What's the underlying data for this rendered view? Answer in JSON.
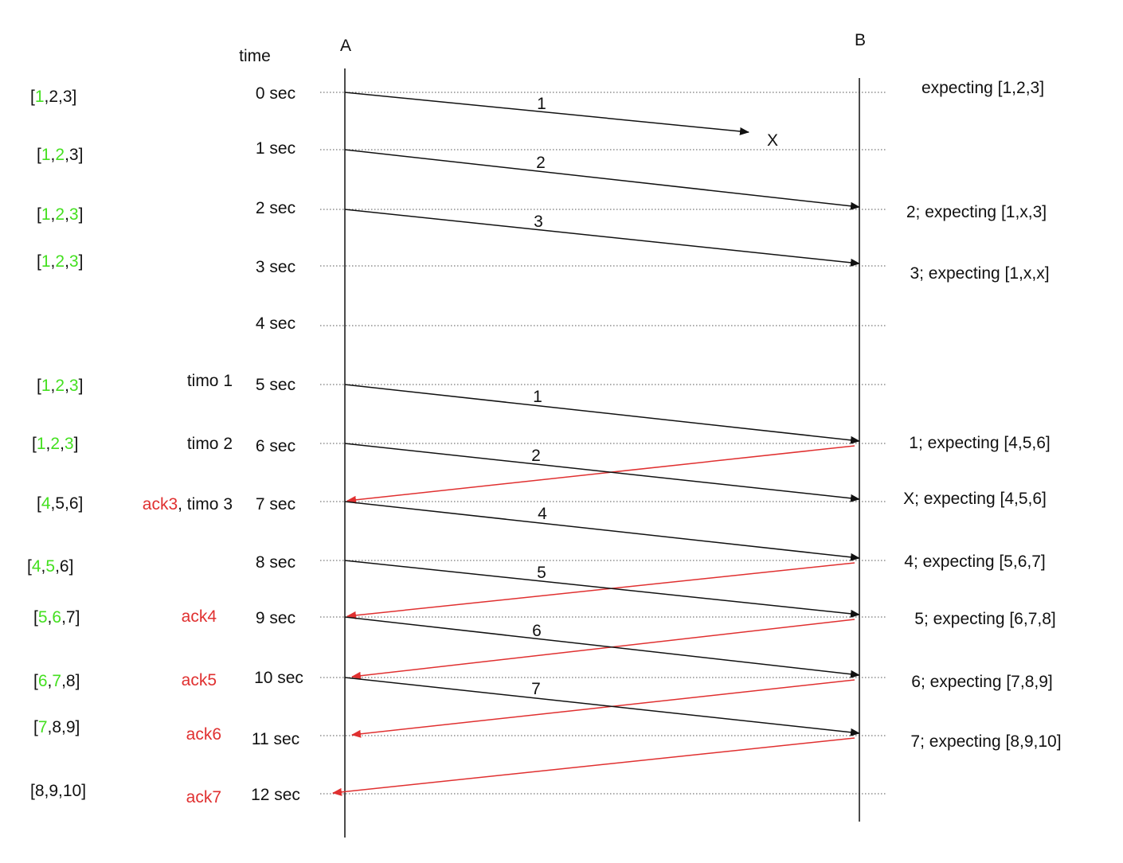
{
  "diagram": {
    "time_header": "time",
    "endpoint_a": "A",
    "endpoint_b": "B",
    "colors": {
      "black": "#111111",
      "red": "#e03030",
      "green": "#44e020",
      "grid": "#555555"
    },
    "time_labels": [
      "0 sec",
      "1 sec",
      "2 sec",
      "3 sec",
      "4 sec",
      "5 sec",
      "6 sec",
      "7 sec",
      "8 sec",
      "9 sec",
      "10 sec",
      "11 sec",
      "12 sec"
    ],
    "windows": [
      [
        {
          "t": "[",
          "c": "black"
        },
        {
          "t": "1",
          "c": "green"
        },
        {
          "t": ",2,3]",
          "c": "black"
        }
      ],
      [
        {
          "t": "[",
          "c": "black"
        },
        {
          "t": "1",
          "c": "green"
        },
        {
          "t": ",",
          "c": "black"
        },
        {
          "t": "2",
          "c": "green"
        },
        {
          "t": ",3]",
          "c": "black"
        }
      ],
      [
        {
          "t": "[",
          "c": "black"
        },
        {
          "t": "1",
          "c": "green"
        },
        {
          "t": ",",
          "c": "black"
        },
        {
          "t": "2",
          "c": "green"
        },
        {
          "t": ",",
          "c": "black"
        },
        {
          "t": "3",
          "c": "green"
        },
        {
          "t": "]",
          "c": "black"
        }
      ],
      [
        {
          "t": "[",
          "c": "black"
        },
        {
          "t": "1",
          "c": "green"
        },
        {
          "t": ",",
          "c": "black"
        },
        {
          "t": "2",
          "c": "green"
        },
        {
          "t": ",",
          "c": "black"
        },
        {
          "t": "3",
          "c": "green"
        },
        {
          "t": "]",
          "c": "black"
        }
      ],
      [
        {
          "t": "[",
          "c": "black"
        },
        {
          "t": "1",
          "c": "green"
        },
        {
          "t": ",",
          "c": "black"
        },
        {
          "t": "2",
          "c": "green"
        },
        {
          "t": ",",
          "c": "black"
        },
        {
          "t": "3",
          "c": "green"
        },
        {
          "t": "]",
          "c": "black"
        }
      ],
      [
        {
          "t": "[",
          "c": "black"
        },
        {
          "t": "1",
          "c": "green"
        },
        {
          "t": ",",
          "c": "black"
        },
        {
          "t": "2",
          "c": "green"
        },
        {
          "t": ",",
          "c": "black"
        },
        {
          "t": "3",
          "c": "green"
        },
        {
          "t": "]",
          "c": "black"
        }
      ],
      [
        {
          "t": "[",
          "c": "black"
        },
        {
          "t": "4",
          "c": "green"
        },
        {
          "t": ",5,6]",
          "c": "black"
        }
      ],
      [
        {
          "t": "[",
          "c": "black"
        },
        {
          "t": "4",
          "c": "green"
        },
        {
          "t": ",",
          "c": "black"
        },
        {
          "t": "5",
          "c": "green"
        },
        {
          "t": ",6]",
          "c": "black"
        }
      ],
      [
        {
          "t": "[",
          "c": "black"
        },
        {
          "t": "5",
          "c": "green"
        },
        {
          "t": ",",
          "c": "black"
        },
        {
          "t": "6",
          "c": "green"
        },
        {
          "t": ",7]",
          "c": "black"
        }
      ],
      [
        {
          "t": "[",
          "c": "black"
        },
        {
          "t": "6",
          "c": "green"
        },
        {
          "t": ",",
          "c": "black"
        },
        {
          "t": "7",
          "c": "green"
        },
        {
          "t": ",8]",
          "c": "black"
        }
      ],
      [
        {
          "t": "[",
          "c": "black"
        },
        {
          "t": "7",
          "c": "green"
        },
        {
          "t": ",8,9]",
          "c": "black"
        }
      ],
      [
        {
          "t": "[8,9,10]",
          "c": "black"
        }
      ]
    ],
    "events": [
      [
        {
          "t": "timo 1",
          "c": "black"
        }
      ],
      [
        {
          "t": "timo 2",
          "c": "black"
        }
      ],
      [
        {
          "t": "ack3",
          "c": "red"
        },
        {
          "t": ", timo 3",
          "c": "black"
        }
      ],
      [
        {
          "t": "ack4",
          "c": "red"
        }
      ],
      [
        {
          "t": "ack5",
          "c": "red"
        }
      ],
      [
        {
          "t": "ack6",
          "c": "red"
        }
      ],
      [
        {
          "t": "ack7",
          "c": "red"
        }
      ]
    ],
    "lost_marker": "X",
    "receiver_states": [
      "expecting [1,2,3]",
      "2; expecting [1,x,3]",
      "3; expecting [1,x,x]",
      "1; expecting [4,5,6]",
      "X; expecting [4,5,6]",
      "4; expecting [5,6,7]",
      "5; expecting [6,7,8]",
      "6; expecting [7,8,9]",
      "7; expecting [8,9,10]"
    ],
    "packets": [
      {
        "label": "1",
        "send_sec": 0,
        "arrive_sec": 0.7,
        "lost": true
      },
      {
        "label": "2",
        "send_sec": 1,
        "arrive_sec": 2
      },
      {
        "label": "3",
        "send_sec": 2,
        "arrive_sec": 3
      },
      {
        "label": "1",
        "send_sec": 5,
        "arrive_sec": 6
      },
      {
        "label": "2",
        "send_sec": 6,
        "arrive_sec": 7
      },
      {
        "label": "4",
        "send_sec": 7,
        "arrive_sec": 8
      },
      {
        "label": "5",
        "send_sec": 8,
        "arrive_sec": 9
      },
      {
        "label": "6",
        "send_sec": 9,
        "arrive_sec": 10
      },
      {
        "label": "7",
        "send_sec": 10,
        "arrive_sec": 11
      }
    ],
    "acks": [
      {
        "send_sec": 6,
        "arrive_sec": 7
      },
      {
        "send_sec": 8,
        "arrive_sec": 9
      },
      {
        "send_sec": 9,
        "arrive_sec": 10
      },
      {
        "send_sec": 10,
        "arrive_sec": 11
      },
      {
        "send_sec": 11,
        "arrive_sec": 12
      }
    ]
  }
}
